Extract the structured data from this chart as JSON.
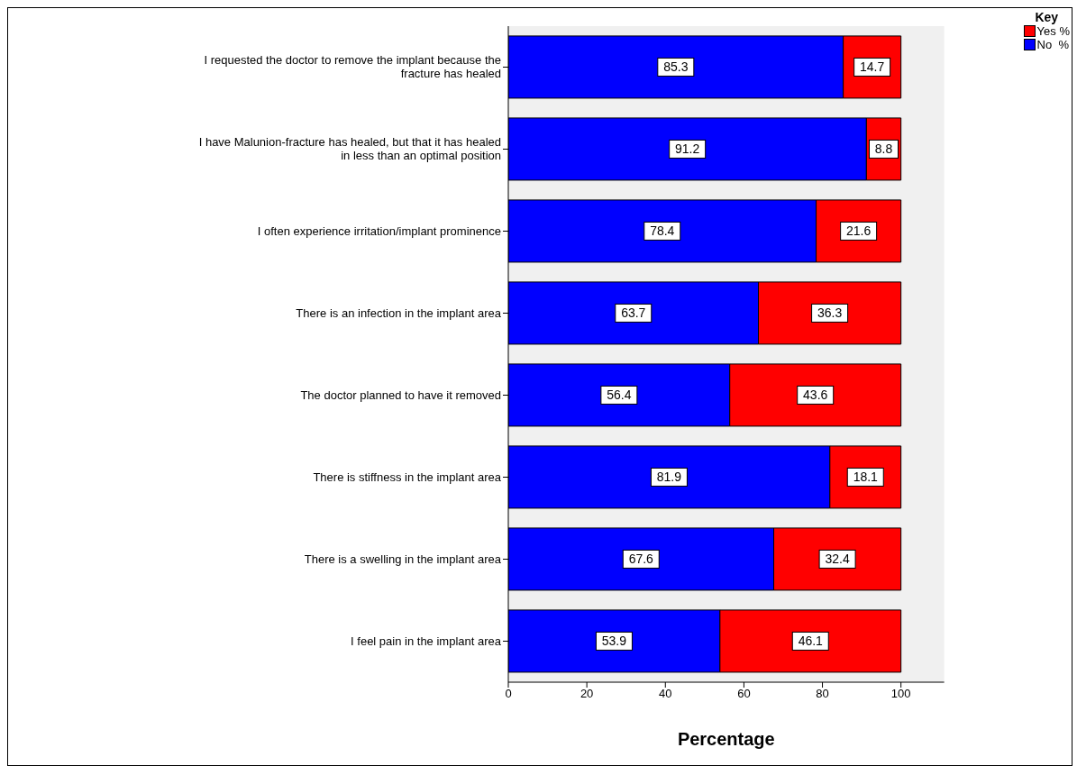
{
  "chart_data": {
    "type": "bar",
    "orientation": "horizontal",
    "stacked": true,
    "categories": [
      "I requested the doctor to remove the implant because the fracture has healed",
      "I have Malunion-fracture has healed, but that it has healed in less than an optimal position",
      "I often experience irritation/implant prominence",
      "There is an infection in the implant area",
      "The doctor planned to have it removed",
      "There is stiffness in the implant area",
      "There is a swelling in the implant area",
      "I feel pain in the implant area"
    ],
    "series": [
      {
        "name": "No  %",
        "color": "#0000ff",
        "values": [
          85.3,
          91.2,
          78.4,
          63.7,
          56.4,
          81.9,
          67.6,
          53.9
        ]
      },
      {
        "name": "Yes %",
        "color": "#ff0000",
        "values": [
          14.7,
          8.8,
          21.6,
          36.3,
          43.6,
          18.1,
          32.4,
          46.1
        ]
      }
    ],
    "xlim": [
      0,
      111
    ],
    "xticks": [
      0,
      20,
      40,
      60,
      80,
      100
    ],
    "xlabel": "Percentage",
    "legend_title": "Key",
    "legend": "top right",
    "data_labels": true,
    "grid": false
  }
}
